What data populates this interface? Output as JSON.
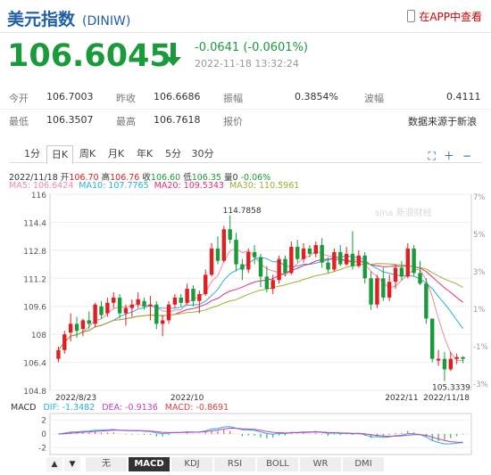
{
  "header": {
    "title": "美元指数",
    "code": "(DINIW)",
    "app_link": "在APP中查看"
  },
  "quote": {
    "price": "106.6045",
    "change": "-0.0641",
    "change_pct": "(-0.0601%)",
    "timestamp": "2022-11-18 13:32:24",
    "down_color": "#1a9a3a"
  },
  "stats": [
    [
      {
        "label": "今开",
        "value": "106.7003"
      },
      {
        "label": "昨收",
        "value": "106.6686"
      },
      {
        "label": "振幅",
        "value": "0.3854%"
      },
      {
        "label": "波幅",
        "value": "0.4111"
      }
    ],
    [
      {
        "label": "最低",
        "value": "106.3507"
      },
      {
        "label": "最高",
        "value": "106.7618"
      },
      {
        "label": "报价",
        "value": ""
      }
    ]
  ],
  "source": "数据来源于新浪",
  "tabs": [
    "1分",
    "日K",
    "周K",
    "月K",
    "年K",
    "5分",
    "30分"
  ],
  "active_tab": "日K",
  "toolbar_icons": [
    "fullscreen-icon",
    "expand-icon",
    "collapse-icon"
  ],
  "info_line": {
    "date": "2022/11/18",
    "open_l": "开",
    "open": "106.70",
    "high_l": "高",
    "high": "106.76",
    "close_l": "收",
    "close": "106.60",
    "low_l": "低",
    "low": "106.35",
    "vol_l": "量",
    "vol": "0",
    "chg": "-0.06%"
  },
  "ma_line": [
    {
      "label": "MA5: 106.6424",
      "color": "#f08aa0"
    },
    {
      "label": "MA10: 107.7765",
      "color": "#2aaed8"
    },
    {
      "label": "MA20: 109.5343",
      "color": "#e0307a"
    },
    {
      "label": "MA30: 110.5961",
      "color": "#9bb030"
    }
  ],
  "watermark": "sina 新浪财经",
  "macd_line": [
    {
      "label": "MACD",
      "color": "#333"
    },
    {
      "label": "DIF: -1.3482",
      "color": "#2aaed8"
    },
    {
      "label": "DEA: -0.9136",
      "color": "#c040c0"
    },
    {
      "label": "MACD: -0.8691",
      "color": "#e04040"
    }
  ],
  "indicator_tabs": [
    "无",
    "MACD",
    "KDJ",
    "RSI",
    "BOLL",
    "WR",
    "DMI"
  ],
  "active_indicator": "MACD",
  "nav": [
    "▲",
    "▼"
  ],
  "chart_data": {
    "type": "candlestick",
    "y_ticks": [
      116,
      114.4,
      112.8,
      111.2,
      109.6,
      108,
      106.4,
      104.8
    ],
    "ylim": [
      104.8,
      116
    ],
    "pct_ticks": [
      "7%",
      "5%",
      "3%",
      "1%",
      "-1%",
      "-3%"
    ],
    "x_labels": [
      "2022/8/23",
      "2022/10",
      "2022/11",
      "2022/11/18"
    ],
    "annotations": {
      "max": "114.7858",
      "min": "105.3339"
    },
    "candle_color_up": "#e02020",
    "candle_color_down": "#1a9a3a",
    "candles": [
      [
        106.6,
        107.3,
        106.4,
        107.1
      ],
      [
        107.1,
        108.2,
        106.9,
        108
      ],
      [
        108.1,
        109.2,
        107.6,
        108.6
      ],
      [
        108.6,
        109,
        107.8,
        108.2
      ],
      [
        108.3,
        108.9,
        107.9,
        108.8
      ],
      [
        108.8,
        109.3,
        108.3,
        108.6
      ],
      [
        108.6,
        109.8,
        108.4,
        109.7
      ],
      [
        109.6,
        109.9,
        108.9,
        109.1
      ],
      [
        109.2,
        110.1,
        109,
        109.8
      ],
      [
        109.8,
        110.4,
        109.5,
        110.1
      ],
      [
        110.1,
        110.3,
        108.9,
        109.2
      ],
      [
        109.2,
        109.7,
        108.5,
        109.5
      ],
      [
        109.5,
        110,
        109,
        109.7
      ],
      [
        109.7,
        110.4,
        109.5,
        110
      ],
      [
        109.9,
        110.1,
        109.4,
        109.6
      ],
      [
        109.6,
        110.2,
        108.8,
        109.7
      ],
      [
        109.7,
        109.9,
        108.3,
        108.6
      ],
      [
        108.6,
        109.1,
        107.9,
        108.8
      ],
      [
        108.8,
        109.9,
        108.6,
        109.7
      ],
      [
        109.7,
        110.3,
        109.5,
        110.1
      ],
      [
        110.1,
        110.3,
        109.6,
        109.8
      ],
      [
        109.8,
        110.9,
        109.7,
        110.6
      ],
      [
        110.6,
        110.8,
        109.6,
        109.9
      ],
      [
        109.9,
        110.5,
        109.2,
        110.3
      ],
      [
        110.3,
        111.7,
        110.2,
        111.4
      ],
      [
        111.4,
        113.2,
        111.3,
        112.9
      ],
      [
        112.9,
        113.6,
        112,
        112.2
      ],
      [
        112.2,
        114.2,
        112.1,
        114
      ],
      [
        114,
        114.79,
        113.2,
        113.4
      ],
      [
        113.4,
        113.8,
        111.6,
        112
      ],
      [
        112,
        112.3,
        111.1,
        111.7
      ],
      [
        111.7,
        112.9,
        111.5,
        112.7
      ],
      [
        112.7,
        113.1,
        112,
        112.4
      ],
      [
        112.4,
        112.6,
        110.7,
        111.3
      ],
      [
        111.3,
        111.9,
        110.4,
        110.6
      ],
      [
        110.6,
        111.4,
        110.3,
        111.1
      ],
      [
        111.1,
        112.5,
        110.9,
        112.3
      ],
      [
        112.3,
        112.5,
        111.3,
        111.5
      ],
      [
        111.5,
        113.3,
        111.4,
        113
      ],
      [
        113,
        113.4,
        112.1,
        112.3
      ],
      [
        112.3,
        113.2,
        112.1,
        112.9
      ],
      [
        112.9,
        113.1,
        112.4,
        112.6
      ],
      [
        112.6,
        113.3,
        112.4,
        113.1
      ],
      [
        113.1,
        113.5,
        111.8,
        112.1
      ],
      [
        112.1,
        112.4,
        111.5,
        111.7
      ],
      [
        111.7,
        112.9,
        111.6,
        112.7
      ],
      [
        112.7,
        113.1,
        111.9,
        112
      ],
      [
        112,
        113,
        111.9,
        112.6
      ],
      [
        112.6,
        113.9,
        111.7,
        111.9
      ],
      [
        111.9,
        112.8,
        111.8,
        112.5
      ],
      [
        112.5,
        112.7,
        110.9,
        111.2
      ],
      [
        111.2,
        111.6,
        109.4,
        109.7
      ],
      [
        109.7,
        111.4,
        109.5,
        111.2
      ],
      [
        111.2,
        111.8,
        109.9,
        110.1
      ],
      [
        110.1,
        111.4,
        109.9,
        111
      ],
      [
        111,
        112,
        110.6,
        111.8
      ],
      [
        111.8,
        112.2,
        111.1,
        111.3
      ],
      [
        111.3,
        113.2,
        111.2,
        112.9
      ],
      [
        112.9,
        113.1,
        111.3,
        111.5
      ],
      [
        111.5,
        112.2,
        110.8,
        110.9
      ],
      [
        110.9,
        111.2,
        108.6,
        108.9
      ],
      [
        108.9,
        108.9,
        106.4,
        106.6
      ],
      [
        106.5,
        107.1,
        106.2,
        106.6
      ],
      [
        106.6,
        107,
        105.33,
        106
      ],
      [
        106,
        107,
        105.9,
        106.6
      ],
      [
        106.6,
        106.9,
        106.3,
        106.7
      ],
      [
        106.7,
        106.76,
        106.35,
        106.6
      ]
    ],
    "macd_ylim": [
      -3,
      3
    ],
    "macd_ticks": [
      2,
      0,
      -2
    ]
  }
}
